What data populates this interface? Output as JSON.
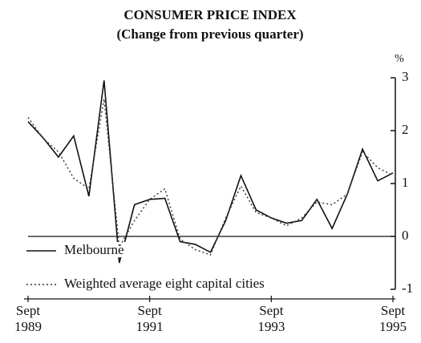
{
  "chart_data": {
    "type": "line",
    "title": "CONSUMER PRICE INDEX",
    "subtitle": "(Change from previous quarter)",
    "y_unit": "%",
    "categories": [
      "Sept 1989",
      null,
      null,
      null,
      null,
      null,
      null,
      null,
      "Sept 1991",
      null,
      null,
      null,
      null,
      null,
      null,
      null,
      "Sept 1993",
      null,
      null,
      null,
      null,
      null,
      null,
      null,
      "Sept 1995"
    ],
    "series": [
      {
        "name": "Melbourne",
        "color": "#111111",
        "style": "solid",
        "values": [
          2.17,
          1.86,
          1.5,
          1.9,
          0.76,
          2.95,
          -0.5,
          0.6,
          0.7,
          0.72,
          -0.1,
          -0.15,
          -0.3,
          0.3,
          1.15,
          0.5,
          0.35,
          0.25,
          0.3,
          0.7,
          0.15,
          0.8,
          1.65,
          1.05,
          1.2
        ]
      },
      {
        "name": "Weighted average eight capital cities",
        "color": "#333333",
        "style": "dotted",
        "values": [
          2.25,
          1.85,
          1.6,
          1.1,
          0.9,
          2.6,
          -0.2,
          0.3,
          0.7,
          0.9,
          -0.05,
          -0.25,
          -0.35,
          0.35,
          0.95,
          0.45,
          0.35,
          0.2,
          0.35,
          0.65,
          0.6,
          0.8,
          1.6,
          1.3,
          1.15
        ]
      }
    ],
    "ylim": [
      -1,
      3
    ],
    "yticks": [
      -1,
      0,
      1,
      2,
      3
    ],
    "y_axis_side": "right",
    "zero_line": true,
    "legend": "lower left"
  }
}
